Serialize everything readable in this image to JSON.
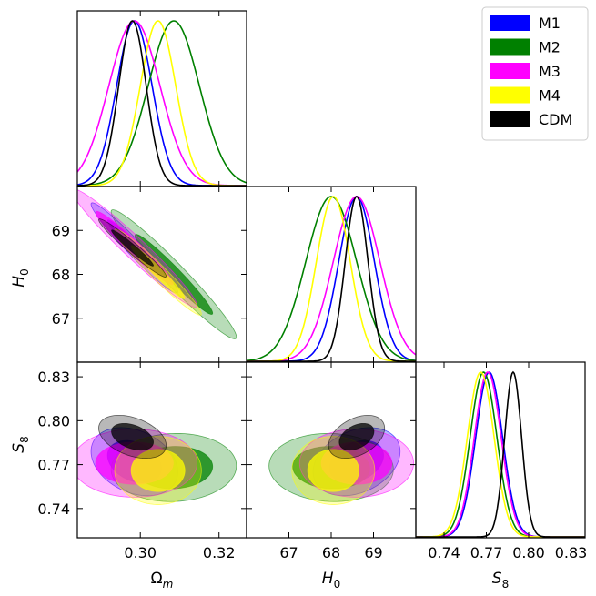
{
  "chart_data": {
    "type": "corner",
    "legend": {
      "placement": "top-right",
      "entries": [
        {
          "name": "M1",
          "color": "#0000ff"
        },
        {
          "name": "M2",
          "color": "#008000"
        },
        {
          "name": "M3",
          "color": "#ff00ff"
        },
        {
          "name": "M4",
          "color": "#ffff00"
        },
        {
          "name": "CDM",
          "color": "#000000"
        }
      ]
    },
    "parameters": [
      {
        "key": "om",
        "label": "Ωm",
        "label_base": "Ω",
        "label_sub": "m",
        "range": [
          0.284,
          0.327
        ],
        "ticks": [
          0.3,
          0.32
        ],
        "tick_labels": [
          "0.30",
          "0.32"
        ]
      },
      {
        "key": "h0",
        "label": "H0",
        "label_base": "H",
        "label_sub": "0",
        "range": [
          66.0,
          70.0
        ],
        "ticks": [
          67,
          68,
          69
        ],
        "tick_labels": [
          "67",
          "68",
          "69"
        ]
      },
      {
        "key": "s8",
        "label": "S8",
        "label_base": "S",
        "label_sub": "8",
        "range": [
          0.72,
          0.84
        ],
        "ticks": [
          0.74,
          0.77,
          0.8,
          0.83
        ],
        "tick_labels": [
          "0.74",
          "0.77",
          "0.80",
          "0.83"
        ]
      }
    ],
    "series": [
      {
        "name": "M1",
        "color": "#0000ff",
        "om": {
          "mean": 0.2985,
          "sd": 0.0045
        },
        "h0": {
          "mean": 68.6,
          "sd": 0.42
        },
        "s8": {
          "mean": 0.772,
          "sd": 0.0095
        },
        "corr": {
          "om_h0": -0.97,
          "om_s8": -0.3,
          "h0_s8": 0.3
        }
      },
      {
        "name": "M2",
        "color": "#008000",
        "om": {
          "mean": 0.3085,
          "sd": 0.0065
        },
        "h0": {
          "mean": 68.0,
          "sd": 0.6
        },
        "s8": {
          "mean": 0.768,
          "sd": 0.0095
        },
        "corr": {
          "om_h0": -0.97,
          "om_s8": 0.05,
          "h0_s8": -0.05
        }
      },
      {
        "name": "M3",
        "color": "#ff00ff",
        "om": {
          "mean": 0.2985,
          "sd": 0.0065
        },
        "h0": {
          "mean": 68.6,
          "sd": 0.55
        },
        "s8": {
          "mean": 0.771,
          "sd": 0.0095
        },
        "corr": {
          "om_h0": -0.97,
          "om_s8": 0.0,
          "h0_s8": 0.0
        }
      },
      {
        "name": "M4",
        "color": "#ffff00",
        "om": {
          "mean": 0.3045,
          "sd": 0.0045
        },
        "h0": {
          "mean": 68.05,
          "sd": 0.4
        },
        "s8": {
          "mean": 0.766,
          "sd": 0.0095
        },
        "corr": {
          "om_h0": -0.97,
          "om_s8": 0.0,
          "h0_s8": 0.0
        }
      },
      {
        "name": "CDM",
        "color": "#000000",
        "om": {
          "mean": 0.298,
          "sd": 0.0035
        },
        "h0": {
          "mean": 68.6,
          "sd": 0.27
        },
        "s8": {
          "mean": 0.789,
          "sd": 0.006
        },
        "corr": {
          "om_h0": -0.97,
          "om_s8": -0.4,
          "h0_s8": 0.4
        }
      }
    ]
  }
}
